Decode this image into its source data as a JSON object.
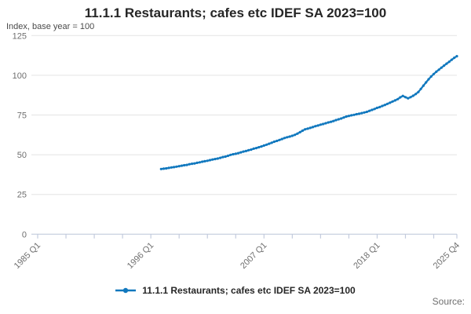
{
  "title": "11.1.1 Restaurants; cafes etc IDEF SA 2023=100",
  "subtitle": "Index, base year = 100",
  "source_label": "Source:",
  "legend": {
    "label": "11.1.1 Restaurants; cafes etc IDEF SA 2023=100"
  },
  "colors": {
    "line": "#1178be",
    "grid": "#e4e4e4",
    "axis": "#c3cbdd",
    "tick_text": "#6f6f6f",
    "text": "#262626"
  },
  "chart_data": {
    "type": "line",
    "title": "11.1.1 Restaurants; cafes etc IDEF SA 2023=100",
    "subtitle": "Index, base year = 100",
    "xlabel": "",
    "ylabel": "Index, base year = 100",
    "ylim": [
      0,
      125
    ],
    "yticks": [
      0,
      25,
      50,
      75,
      100,
      125
    ],
    "grid": "horizontal",
    "legend_position": "bottom",
    "x_axis": {
      "start": "1985 Q1",
      "end": "2025 Q4",
      "total_quarters": 163,
      "minor_tick_every_quarters": 11,
      "labeled_ticks": [
        {
          "offset": 0,
          "label": "1985 Q1"
        },
        {
          "offset": 44,
          "label": "1996 Q1"
        },
        {
          "offset": 88,
          "label": "2007 Q1"
        },
        {
          "offset": 132,
          "label": "2018 Q1"
        },
        {
          "offset": 163,
          "label": "2025 Q4"
        }
      ]
    },
    "series": [
      {
        "name": "11.1.1 Restaurants; cafes etc IDEF SA 2023=100",
        "frequency": "quarterly",
        "start": "1997 Q1",
        "start_offset_quarters": 48,
        "values": [
          41.0,
          41.2,
          41.4,
          41.7,
          42.0,
          42.2,
          42.5,
          42.8,
          43.1,
          43.4,
          43.6,
          44.0,
          44.3,
          44.5,
          44.9,
          45.2,
          45.6,
          45.9,
          46.2,
          46.6,
          47.0,
          47.3,
          47.6,
          48.0,
          48.5,
          48.8,
          49.3,
          49.9,
          50.3,
          50.6,
          51.0,
          51.5,
          52.0,
          52.3,
          52.8,
          53.2,
          53.8,
          54.2,
          54.7,
          55.2,
          55.8,
          56.3,
          56.9,
          57.5,
          58.2,
          58.7,
          59.3,
          59.9,
          60.5,
          61.0,
          61.4,
          61.9,
          62.5,
          63.3,
          64.2,
          65.1,
          66.0,
          66.4,
          66.9,
          67.4,
          68.0,
          68.4,
          68.9,
          69.3,
          69.8,
          70.3,
          70.7,
          71.2,
          71.8,
          72.3,
          72.8,
          73.4,
          74.0,
          74.4,
          74.8,
          75.1,
          75.5,
          75.8,
          76.2,
          76.6,
          77.0,
          77.6,
          78.2,
          78.8,
          79.5,
          80.0,
          80.7,
          81.3,
          82.0,
          82.7,
          83.5,
          84.2,
          85.0,
          86.1,
          87.0,
          86.2,
          85.5,
          86.2,
          87.1,
          88.2,
          89.5,
          91.4,
          93.5,
          95.5,
          97.5,
          99.2,
          100.8,
          102.2,
          103.5,
          104.8,
          106.1,
          107.3,
          108.5,
          109.8,
          111.0,
          112.0
        ]
      }
    ]
  }
}
